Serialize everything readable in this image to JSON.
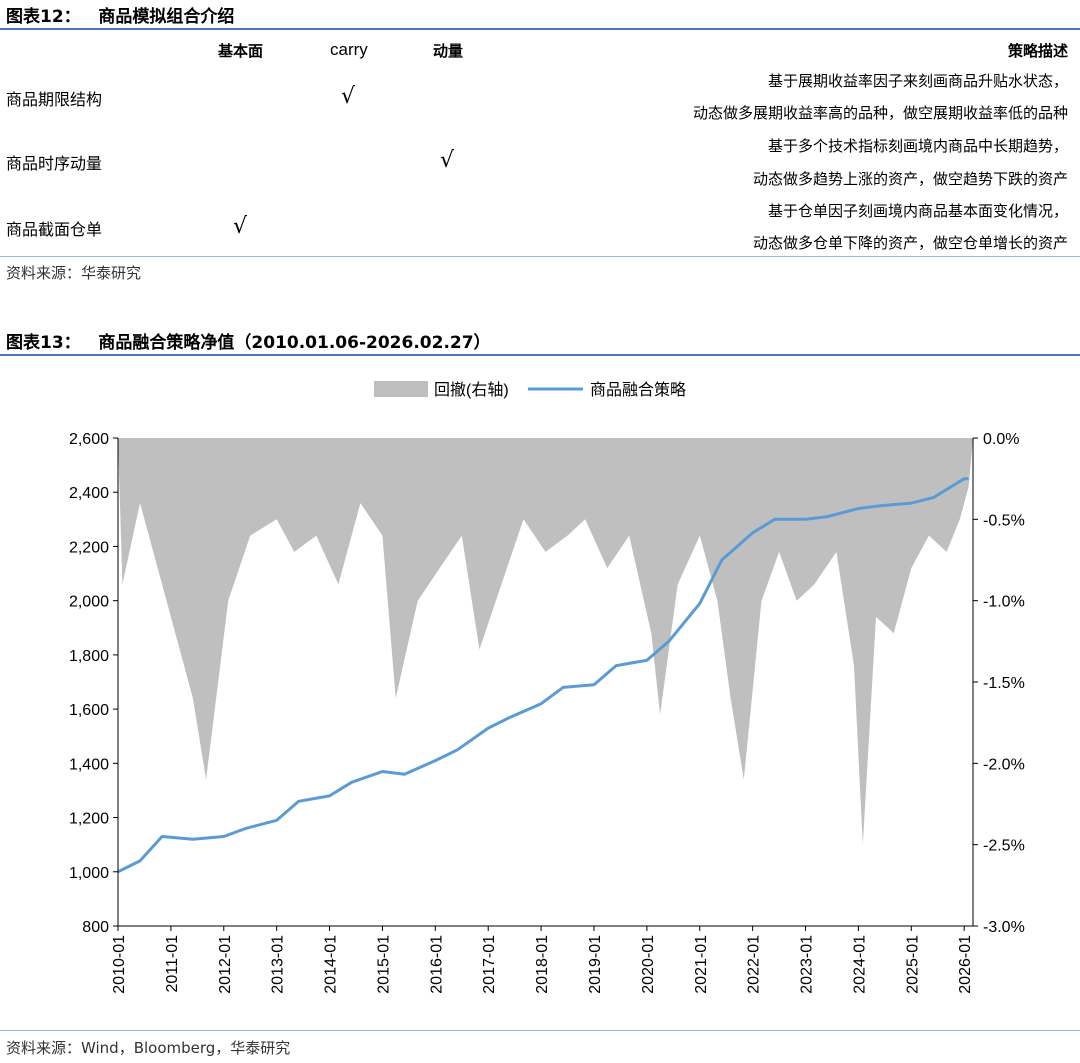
{
  "table_section": {
    "title": "图表12：   商品模拟组合介绍",
    "columns": [
      "基本面",
      "carry",
      "动量",
      "策略描述"
    ],
    "rows": [
      {
        "name": "商品期限结构",
        "check_column": "carry",
        "check": "√",
        "desc_line1": "基于展期收益率因子来刻画商品升贴水状态，",
        "desc_line2": "动态做多展期收益率高的品种，做空展期收益率低的品种"
      },
      {
        "name": "商品时序动量",
        "check_column": "动量",
        "check": "√",
        "desc_line1": "基于多个技术指标刻画境内商品中长期趋势，",
        "desc_line2": "动态做多趋势上涨的资产，做空趋势下跌的资产"
      },
      {
        "name": "商品截面仓单",
        "check_column": "基本面",
        "check": "√",
        "desc_line1": "基于仓单因子刻画境内商品基本面变化情况，",
        "desc_line2": "动态做多仓单下降的资产，做空仓单增长的资产"
      }
    ],
    "source": "资料来源：华泰研究"
  },
  "chart_section": {
    "title": "图表13：   商品融合策略净值（2010.01.06-2026.02.27）",
    "source": "资料来源：Wind，Bloomberg，华泰研究"
  },
  "chart_data": {
    "type": "line",
    "legend": [
      "回撤(右轴)",
      "商品融合策略"
    ],
    "legend_position": "top-center",
    "grid": false,
    "colors": {
      "drawdown": "#bfbfbf",
      "strategy": "#5b9bd5"
    },
    "x_ticks": [
      "2010-01",
      "2011-01",
      "2012-01",
      "2013-01",
      "2014-01",
      "2015-01",
      "2016-01",
      "2017-01",
      "2018-01",
      "2019-01",
      "2020-01",
      "2021-01",
      "2022-01",
      "2023-01",
      "2024-01",
      "2025-01",
      "2026-01"
    ],
    "x_range": [
      "2010-01",
      "2026-02"
    ],
    "y_left": {
      "range": [
        800,
        2600
      ],
      "ticks": [
        "800",
        "1,000",
        "1,200",
        "1,400",
        "1,600",
        "1,800",
        "2,000",
        "2,200",
        "2,400",
        "2,600"
      ]
    },
    "y_right": {
      "range": [
        -3.0,
        0.0
      ],
      "ticks": [
        "0.0%",
        "-0.5%",
        "-1.0%",
        "-1.5%",
        "-2.0%",
        "-2.5%",
        "-3.0%"
      ]
    },
    "series": [
      {
        "name": "商品融合策略",
        "axis": "left",
        "x": [
          "2010-01",
          "2010-06",
          "2010-11",
          "2011-06",
          "2012-01",
          "2012-06",
          "2013-01",
          "2013-06",
          "2014-01",
          "2014-06",
          "2015-01",
          "2015-06",
          "2016-01",
          "2016-06",
          "2017-01",
          "2017-06",
          "2018-01",
          "2018-06",
          "2019-01",
          "2019-06",
          "2020-01",
          "2020-06",
          "2021-01",
          "2021-06",
          "2022-01",
          "2022-06",
          "2023-01",
          "2023-06",
          "2024-01",
          "2024-06",
          "2025-01",
          "2025-06",
          "2026-01",
          "2026-02"
        ],
        "values": [
          1000,
          1040,
          1130,
          1120,
          1130,
          1160,
          1190,
          1260,
          1280,
          1330,
          1370,
          1360,
          1410,
          1450,
          1530,
          1570,
          1620,
          1680,
          1690,
          1760,
          1780,
          1850,
          1990,
          2150,
          2250,
          2300,
          2300,
          2310,
          2340,
          2350,
          2360,
          2380,
          2450,
          2450
        ]
      },
      {
        "name": "回撤(右轴)",
        "axis": "right",
        "x": [
          "2010-02",
          "2010-06",
          "2010-10",
          "2011-03",
          "2011-06",
          "2011-09",
          "2012-02",
          "2012-07",
          "2013-01",
          "2013-05",
          "2013-10",
          "2014-03",
          "2014-08",
          "2015-01",
          "2015-04",
          "2015-09",
          "2016-02",
          "2016-07",
          "2016-11",
          "2017-04",
          "2017-09",
          "2018-02",
          "2018-07",
          "2018-11",
          "2019-04",
          "2019-09",
          "2020-02",
          "2020-04",
          "2020-08",
          "2021-01",
          "2021-05",
          "2021-08",
          "2021-11",
          "2022-03",
          "2022-07",
          "2022-11",
          "2023-03",
          "2023-08",
          "2023-12",
          "2024-02",
          "2024-05",
          "2024-09",
          "2025-01",
          "2025-05",
          "2025-09",
          "2025-12",
          "2026-02"
        ],
        "values": [
          -0.9,
          -0.4,
          -0.8,
          -1.3,
          -1.6,
          -2.1,
          -1.0,
          -0.6,
          -0.5,
          -0.7,
          -0.6,
          -0.9,
          -0.4,
          -0.6,
          -1.6,
          -1.0,
          -0.8,
          -0.6,
          -1.3,
          -0.9,
          -0.5,
          -0.7,
          -0.6,
          -0.5,
          -0.8,
          -0.6,
          -1.2,
          -1.7,
          -0.9,
          -0.6,
          -1.0,
          -1.6,
          -2.1,
          -1.0,
          -0.7,
          -1.0,
          -0.9,
          -0.7,
          -1.4,
          -2.5,
          -1.1,
          -1.2,
          -0.8,
          -0.6,
          -0.7,
          -0.5,
          -0.3
        ]
      }
    ]
  }
}
